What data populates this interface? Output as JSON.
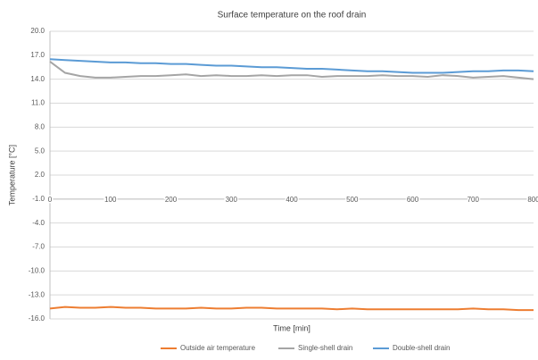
{
  "chart_data": {
    "type": "line",
    "title": "Surface temperature on the roof drain",
    "x_label": "Time [min]",
    "y_label": "Temperature [°C]",
    "x": [
      0,
      25,
      50,
      75,
      100,
      125,
      150,
      175,
      200,
      225,
      250,
      275,
      300,
      325,
      350,
      375,
      400,
      425,
      450,
      475,
      500,
      525,
      550,
      575,
      600,
      625,
      650,
      675,
      700,
      725,
      750,
      775,
      800
    ],
    "series": [
      {
        "name": "Outside air temperature",
        "color": "#ed7d31",
        "values": [
          -14.7,
          -14.5,
          -14.6,
          -14.6,
          -14.5,
          -14.6,
          -14.6,
          -14.7,
          -14.7,
          -14.7,
          -14.6,
          -14.7,
          -14.7,
          -14.6,
          -14.6,
          -14.7,
          -14.7,
          -14.7,
          -14.7,
          -14.8,
          -14.7,
          -14.8,
          -14.8,
          -14.8,
          -14.8,
          -14.8,
          -14.8,
          -14.8,
          -14.7,
          -14.8,
          -14.8,
          -14.9,
          -14.9
        ]
      },
      {
        "name": "Single-shell drain",
        "color": "#a5a5a5",
        "values": [
          16.2,
          14.8,
          14.4,
          14.2,
          14.2,
          14.3,
          14.4,
          14.4,
          14.5,
          14.6,
          14.4,
          14.5,
          14.4,
          14.4,
          14.5,
          14.4,
          14.5,
          14.5,
          14.3,
          14.4,
          14.4,
          14.4,
          14.5,
          14.4,
          14.4,
          14.3,
          14.5,
          14.4,
          14.2,
          14.3,
          14.4,
          14.2,
          14.0
        ]
      },
      {
        "name": "Double-shell drain",
        "color": "#5b9bd5",
        "values": [
          16.5,
          16.4,
          16.3,
          16.2,
          16.1,
          16.1,
          16.0,
          16.0,
          15.9,
          15.9,
          15.8,
          15.7,
          15.7,
          15.6,
          15.5,
          15.5,
          15.4,
          15.3,
          15.3,
          15.2,
          15.1,
          15.0,
          15.0,
          14.9,
          14.8,
          14.8,
          14.8,
          14.9,
          15.0,
          15.0,
          15.1,
          15.1,
          15.0
        ]
      }
    ],
    "xlim": [
      0,
      800
    ],
    "xticks": [
      0,
      100,
      200,
      300,
      400,
      500,
      600,
      700,
      800
    ],
    "ylim": [
      -16,
      20
    ],
    "yticks": [
      {
        "value": 20,
        "label": "20.0"
      },
      {
        "value": 17,
        "label": "17.0"
      },
      {
        "value": 14,
        "label": "14.0"
      },
      {
        "value": 11,
        "label": "11.0"
      },
      {
        "value": 8,
        "label": "8.0"
      },
      {
        "value": 5,
        "label": "5.0"
      },
      {
        "value": 2,
        "label": "2.0"
      },
      {
        "value": -1,
        "label": "-1.0"
      },
      {
        "value": -4,
        "label": "-4.0"
      },
      {
        "value": -7,
        "label": "-7.0"
      },
      {
        "value": -10,
        "label": "-10.0"
      },
      {
        "value": -13,
        "label": "-13.0"
      },
      {
        "value": -16,
        "label": "-16.0"
      }
    ],
    "x_axis_crossing": -1,
    "grid": true,
    "legend": "bottom"
  }
}
